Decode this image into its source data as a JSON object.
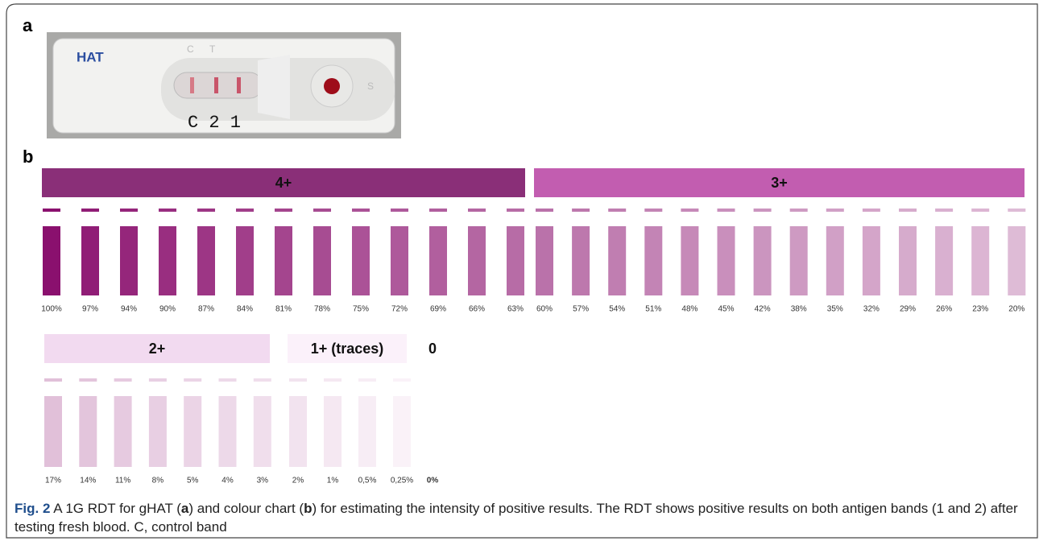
{
  "panel_a": {
    "label": "a",
    "device_brand": "HAT",
    "window_marks": [
      "C",
      "T"
    ],
    "sample_mark": "S",
    "band_labels": "C 2 1"
  },
  "panel_b": {
    "label": "b",
    "groups": [
      {
        "label": "4+",
        "swatches": [
          "100%",
          "97%",
          "94%",
          "90%",
          "87%",
          "84%",
          "81%",
          "78%",
          "75%",
          "72%",
          "69%",
          "66%",
          "63%"
        ]
      },
      {
        "label": "3+",
        "swatches": [
          "60%",
          "57%",
          "54%",
          "51%",
          "48%",
          "45%",
          "42%",
          "38%",
          "35%",
          "32%",
          "29%",
          "26%",
          "23%",
          "20%"
        ]
      },
      {
        "label": "2+",
        "swatches": [
          "17%",
          "14%",
          "11%",
          "8%",
          "5%",
          "4%",
          "3%"
        ]
      },
      {
        "label": "1+ (traces)",
        "swatches": [
          "2%",
          "1%",
          "0,5%",
          "0,25%"
        ]
      },
      {
        "label": "0",
        "swatches": [
          "0%"
        ]
      }
    ]
  },
  "caption": {
    "parts": [
      "Fig. 2",
      " A 1G RDT for gHAT (",
      "a",
      ") and colour chart (",
      "b",
      ") for estimating the intensity of positive results. The RDT shows positive results on both antigen bands (1 and 2) after testing fresh blood. C, control band"
    ]
  }
}
